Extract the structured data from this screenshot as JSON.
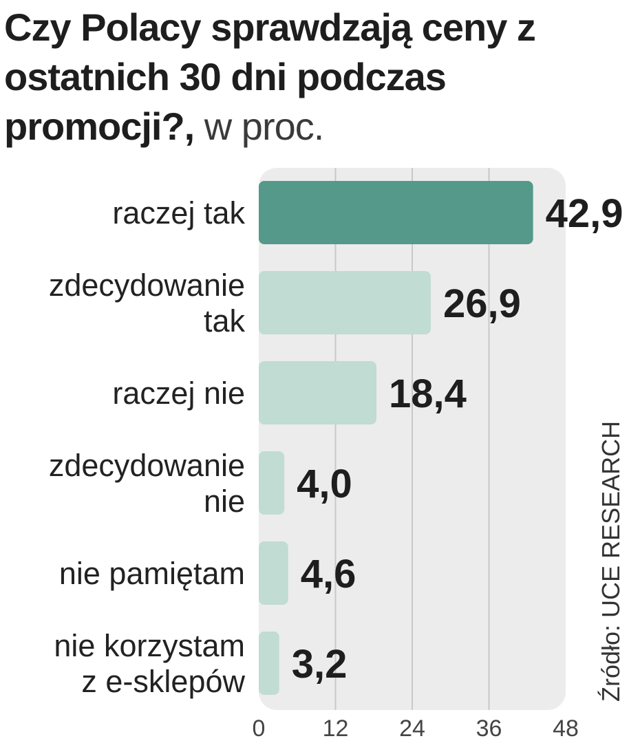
{
  "title": {
    "bold": "Czy Polacy sprawdzają ceny z ostatnich 30 dni podczas promocji?,",
    "light": " w proc."
  },
  "source": "Źródło: UCE RESEARCH",
  "colors": {
    "highlight_bar": "#54998a",
    "bar": "#c0dcd3",
    "plot_bg": "#ececec",
    "grid": "#c8c8c8",
    "text": "#1e1e1e"
  },
  "chart_data": {
    "type": "bar",
    "orientation": "horizontal",
    "categories": [
      [
        "raczej tak"
      ],
      [
        "zdecydowanie",
        "tak"
      ],
      [
        "raczej nie"
      ],
      [
        "zdecydowanie",
        "nie"
      ],
      [
        "nie pamiętam"
      ],
      [
        "nie korzystam",
        "z e-sklepów"
      ]
    ],
    "values": [
      42.9,
      26.9,
      18.4,
      4.0,
      4.6,
      3.2
    ],
    "value_labels": [
      "42,9",
      "26,9",
      "18,4",
      "4,0",
      "4,6",
      "3,2"
    ],
    "highlight_index": 0,
    "xlim": [
      0,
      48
    ],
    "xticks": [
      0,
      12,
      24,
      36,
      48
    ],
    "grid": true
  }
}
